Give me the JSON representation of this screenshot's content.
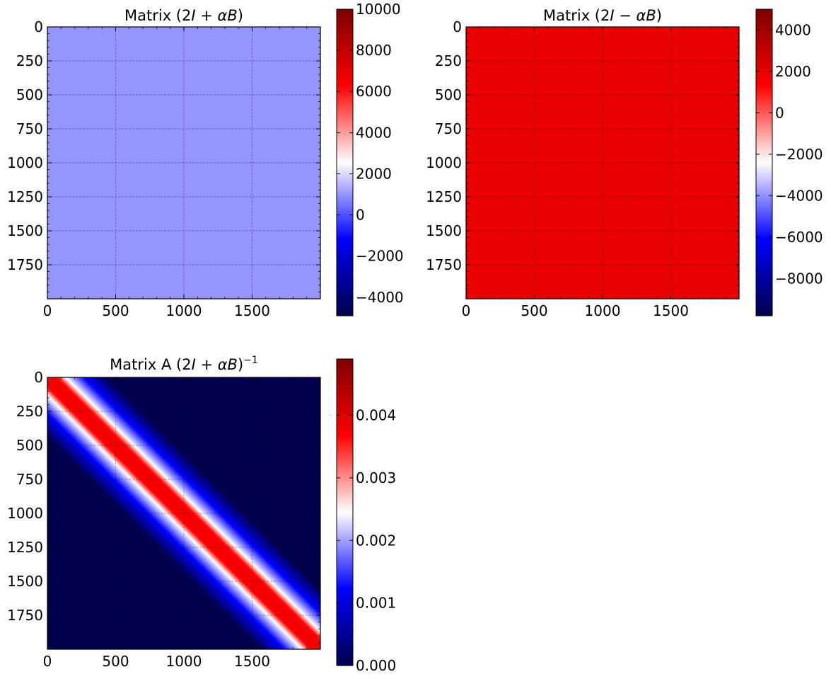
{
  "chart_data": [
    {
      "type": "heatmap",
      "title": "Matrix (2I + αB)",
      "title_parts": {
        "prefix": "Matrix (2",
        "var1": "I",
        "op": " + ",
        "var2": "αB",
        "suffix": ")",
        "sup": ""
      },
      "matrix_size": 2000,
      "pattern": "uniform",
      "uniform_value": 1000,
      "xlim": [
        0,
        2000
      ],
      "ylim": [
        2000,
        0
      ],
      "xticks": [
        0,
        500,
        1000,
        1500
      ],
      "yticks": [
        0,
        250,
        500,
        750,
        1000,
        1250,
        1500,
        1750
      ],
      "colorbar": {
        "colormap": "seismic",
        "vmin": -4900,
        "vmax": 10000,
        "ticks": [
          -4000,
          -2000,
          0,
          2000,
          4000,
          6000,
          8000,
          10000
        ],
        "tick_labels": [
          "−4000",
          "−2000",
          "0",
          "2000",
          "4000",
          "6000",
          "8000",
          "10000"
        ]
      },
      "grid": true
    },
    {
      "type": "heatmap",
      "title": "Matrix (2I − αB)",
      "title_parts": {
        "prefix": "Matrix (2",
        "var1": "I",
        "op": " − ",
        "var2": "αB",
        "suffix": ")",
        "sup": ""
      },
      "matrix_size": 2000,
      "pattern": "uniform",
      "uniform_value": 1900,
      "xlim": [
        0,
        2000
      ],
      "ylim": [
        2000,
        0
      ],
      "xticks": [
        0,
        500,
        1000,
        1500
      ],
      "yticks": [
        0,
        250,
        500,
        750,
        1000,
        1250,
        1500,
        1750
      ],
      "colorbar": {
        "colormap": "seismic",
        "vmin": -9800,
        "vmax": 5000,
        "ticks": [
          -8000,
          -6000,
          -4000,
          -2000,
          0,
          2000,
          4000
        ],
        "tick_labels": [
          "−8000",
          "−6000",
          "−4000",
          "−2000",
          "0",
          "2000",
          "4000"
        ]
      },
      "grid": true
    },
    {
      "type": "heatmap",
      "title": "Matrix A (2I + αB)⁻¹",
      "title_parts": {
        "prefix": "Matrix A (2",
        "var1": "I",
        "op": " + ",
        "var2": "αB",
        "suffix": ")",
        "sup": "−1"
      },
      "matrix_size": 2000,
      "pattern": "banded-diagonal",
      "diagonal_peak": 0.0049,
      "band_halfwidth": 55,
      "xlim": [
        0,
        2000
      ],
      "ylim": [
        2000,
        0
      ],
      "xticks": [
        0,
        500,
        1000,
        1500
      ],
      "yticks": [
        0,
        250,
        500,
        750,
        1000,
        1250,
        1500,
        1750
      ],
      "colorbar": {
        "colormap": "seismic",
        "vmin": 0.0,
        "vmax": 0.0049,
        "ticks": [
          0.0,
          0.001,
          0.002,
          0.003,
          0.004
        ],
        "tick_labels": [
          "0.000",
          "0.001",
          "0.002",
          "0.003",
          "0.004"
        ]
      },
      "grid": true
    }
  ]
}
